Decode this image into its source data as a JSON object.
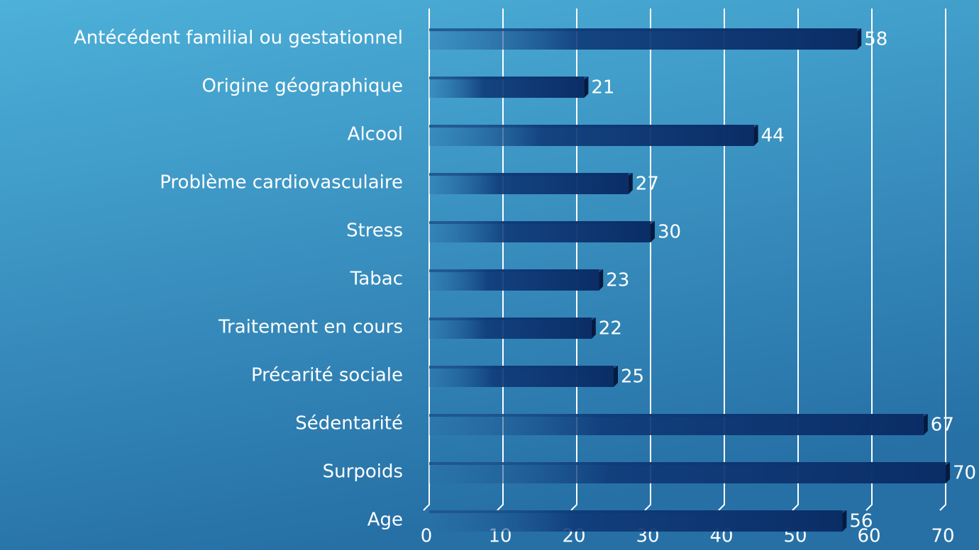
{
  "chart_data": {
    "type": "bar",
    "orientation": "horizontal",
    "categories": [
      "Antécédent familial ou gestationnel",
      "Origine géographique",
      "Alcool",
      "Problème cardiovasculaire",
      "Stress",
      "Tabac",
      "Traitement en cours",
      "Précarité sociale",
      "Sédentarité",
      "Surpoids",
      "Age"
    ],
    "values": [
      58,
      21,
      44,
      27,
      30,
      23,
      22,
      25,
      67,
      70,
      56
    ],
    "color": "#0b2d66",
    "xlim": [
      0,
      70
    ],
    "xticks": [
      0,
      10,
      20,
      30,
      40,
      50,
      60,
      70
    ],
    "grid": true
  }
}
